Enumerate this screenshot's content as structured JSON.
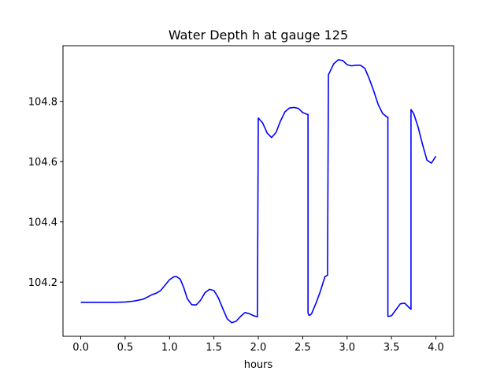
{
  "chart_data": {
    "type": "line",
    "title": "Water Depth h at gauge 125",
    "xlabel": "hours",
    "ylabel": "",
    "xlim": [
      -0.2,
      4.2
    ],
    "ylim": [
      104.02,
      104.985
    ],
    "grid": false,
    "legend": "none",
    "x_ticks": [
      0.0,
      0.5,
      1.0,
      1.5,
      2.0,
      2.5,
      3.0,
      3.5,
      4.0
    ],
    "x_tick_labels": [
      "0.0",
      "0.5",
      "1.0",
      "1.5",
      "2.0",
      "2.5",
      "3.0",
      "3.5",
      "4.0"
    ],
    "y_ticks": [
      104.2,
      104.4,
      104.6,
      104.8
    ],
    "y_tick_labels": [
      "104.2",
      "104.4",
      "104.6",
      "104.8"
    ],
    "series": [
      {
        "color": "#0000ff",
        "x": [
          0.0,
          0.1,
          0.2,
          0.3,
          0.4,
          0.5,
          0.6,
          0.7,
          0.75,
          0.8,
          0.85,
          0.9,
          0.95,
          1.0,
          1.05,
          1.08,
          1.12,
          1.16,
          1.2,
          1.25,
          1.3,
          1.35,
          1.4,
          1.45,
          1.5,
          1.55,
          1.6,
          1.65,
          1.7,
          1.75,
          1.8,
          1.85,
          1.9,
          1.95,
          1.99,
          2.0,
          2.05,
          2.1,
          2.15,
          2.2,
          2.25,
          2.3,
          2.35,
          2.4,
          2.45,
          2.5,
          2.55,
          2.56,
          2.56,
          2.57,
          2.58,
          2.6,
          2.65,
          2.7,
          2.75,
          2.78,
          2.79,
          2.85,
          2.9,
          2.95,
          3.0,
          3.05,
          3.1,
          3.15,
          3.2,
          3.25,
          3.3,
          3.35,
          3.4,
          3.45,
          3.46,
          3.46,
          3.5,
          3.55,
          3.6,
          3.65,
          3.7,
          3.72,
          3.72,
          3.75,
          3.8,
          3.85,
          3.9,
          3.95,
          4.0
        ],
        "y": [
          104.133,
          104.133,
          104.133,
          104.133,
          104.133,
          104.134,
          104.137,
          104.143,
          104.15,
          104.158,
          104.163,
          104.172,
          104.19,
          104.208,
          104.218,
          104.218,
          104.21,
          104.182,
          104.145,
          104.125,
          104.124,
          104.14,
          104.165,
          104.176,
          104.172,
          104.148,
          104.112,
          104.078,
          104.065,
          104.07,
          104.086,
          104.099,
          104.095,
          104.088,
          104.085,
          104.745,
          104.728,
          104.695,
          104.68,
          104.697,
          104.735,
          104.765,
          104.778,
          104.78,
          104.777,
          104.763,
          104.757,
          104.757,
          104.098,
          104.09,
          104.09,
          104.095,
          104.13,
          104.17,
          104.218,
          104.223,
          104.888,
          104.925,
          104.938,
          104.936,
          104.922,
          104.918,
          104.92,
          104.92,
          104.91,
          104.875,
          104.835,
          104.79,
          104.76,
          104.748,
          104.748,
          104.086,
          104.088,
          104.108,
          104.128,
          104.13,
          104.115,
          104.11,
          104.773,
          104.76,
          104.715,
          104.657,
          104.605,
          104.595,
          104.618
        ]
      }
    ]
  }
}
